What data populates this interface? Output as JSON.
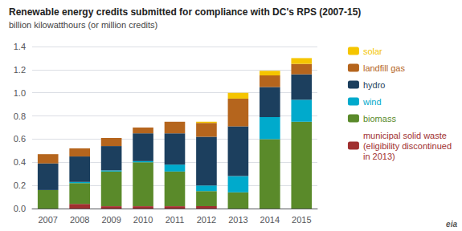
{
  "chart_data": {
    "type": "bar",
    "title": "Renewable energy credits submitted for compliance with DC's RPS (2007-15)",
    "subtitle": "billion kilowatthours (or million credits)",
    "annotation": "eia",
    "categories": [
      "2007",
      "2008",
      "2009",
      "2010",
      "2011",
      "2012",
      "2013",
      "2014",
      "2015"
    ],
    "series": [
      {
        "name": "municipal solid waste\n(eligibility discontinued\nin 2013)",
        "color": "#a03030",
        "values": [
          0.0,
          0.04,
          0.02,
          0.02,
          0.02,
          0.02,
          0.0,
          0.0,
          0.0
        ]
      },
      {
        "name": "biomass",
        "color": "#5a8a2a",
        "values": [
          0.16,
          0.18,
          0.3,
          0.38,
          0.3,
          0.13,
          0.14,
          0.6,
          0.75
        ]
      },
      {
        "name": "wind",
        "color": "#00aacc",
        "values": [
          0.0,
          0.01,
          0.01,
          0.01,
          0.06,
          0.05,
          0.14,
          0.19,
          0.19
        ]
      },
      {
        "name": "hydro",
        "color": "#1c3f5e",
        "values": [
          0.23,
          0.22,
          0.21,
          0.24,
          0.27,
          0.42,
          0.43,
          0.26,
          0.22
        ]
      },
      {
        "name": "landfill gas",
        "color": "#b5651d",
        "values": [
          0.08,
          0.07,
          0.07,
          0.05,
          0.1,
          0.12,
          0.24,
          0.1,
          0.09
        ]
      },
      {
        "name": "solar",
        "color": "#f5c500",
        "values": [
          0.0,
          0.0,
          0.0,
          0.0,
          0.0,
          0.01,
          0.05,
          0.04,
          0.05
        ]
      }
    ],
    "stacked": true,
    "ylim": [
      0,
      1.4
    ],
    "yticks": [
      {
        "value": 0,
        "label": "0.0"
      },
      0.2,
      0.4,
      0.6,
      0.8,
      {
        "value": 1,
        "label": "1.0"
      },
      1.2,
      1.4
    ],
    "grid": true,
    "legend": "right"
  }
}
